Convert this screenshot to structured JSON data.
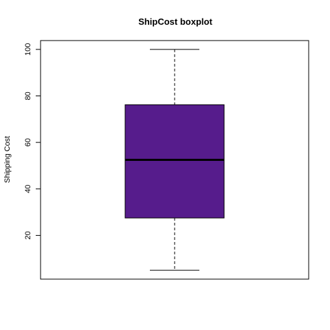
{
  "chart_data": {
    "type": "boxplot",
    "title": "ShipCost boxplot",
    "xlabel": "",
    "ylabel": "Shipping Cost",
    "ylim": [
      1.2,
      103.8
    ],
    "yticks": [
      20,
      40,
      60,
      80,
      100
    ],
    "box": {
      "min": 5,
      "q1": 27.5,
      "median": 52.5,
      "q3": 76.2,
      "max": 100
    },
    "grid": false,
    "legend": "none",
    "colors": {
      "box_fill": "#561C8C",
      "outline": "#000000",
      "background": "#ffffff"
    }
  }
}
